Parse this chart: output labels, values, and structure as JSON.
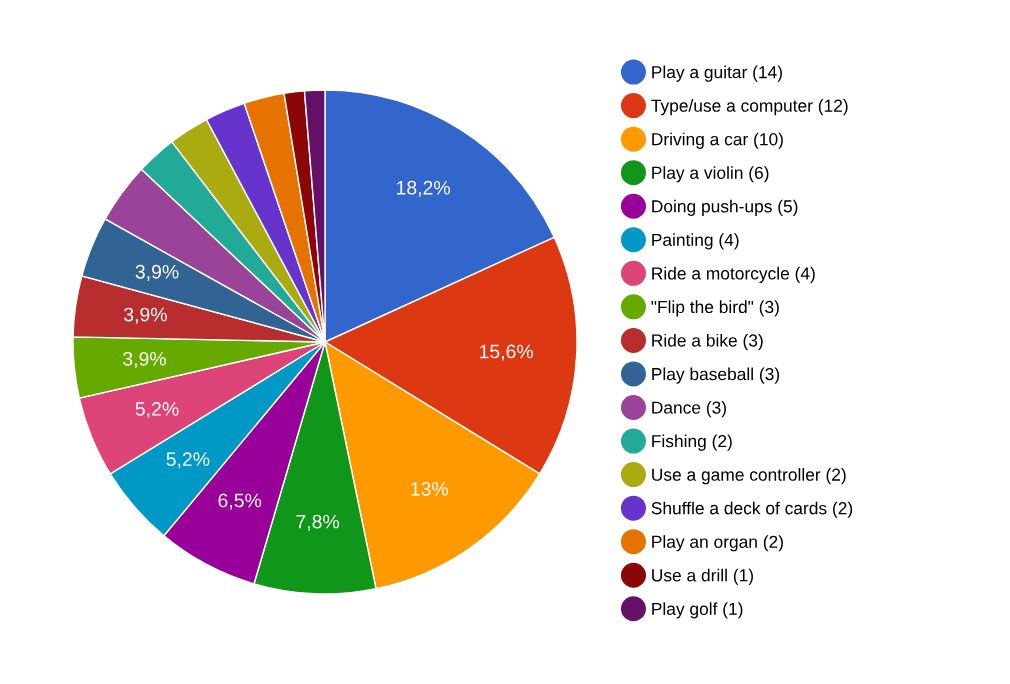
{
  "chart_data": {
    "type": "pie",
    "legend": "right",
    "categories": [
      "Play a guitar (14)",
      "Type/use a computer (12)",
      "Driving a car (10)",
      "Play a violin (6)",
      "Doing push-ups (5)",
      "Painting (4)",
      "Ride a motorcycle (4)",
      "\"Flip the bird\" (3)",
      "Ride a bike (3)",
      "Play baseball (3)",
      "Dance (3)",
      "Fishing (2)",
      "Use a game controller (2)",
      "Shuffle a deck of cards (2)",
      "Play an organ (2)",
      "Use a drill (1)",
      "Play golf (1)"
    ],
    "values": [
      18.2,
      15.6,
      13,
      7.8,
      6.5,
      5.2,
      5.2,
      3.9,
      3.9,
      3.9,
      3.9,
      2.6,
      2.6,
      2.6,
      2.6,
      1.3,
      1.3
    ],
    "value_labels": [
      "18,2%",
      "15,6%",
      "13%",
      "7,8%",
      "6,5%",
      "5,2%",
      "5,2%",
      "3,9%",
      "3,9%",
      "3,9%",
      null,
      null,
      null,
      null,
      null,
      null,
      null
    ],
    "colors": [
      "#3366cc",
      "#dc3912",
      "#ff9900",
      "#109618",
      "#990099",
      "#0099c6",
      "#dd4477",
      "#66aa00",
      "#b82e2e",
      "#316395",
      "#994499",
      "#22aa99",
      "#aaaa11",
      "#6633cc",
      "#e67300",
      "#8b0707",
      "#651067"
    ]
  }
}
